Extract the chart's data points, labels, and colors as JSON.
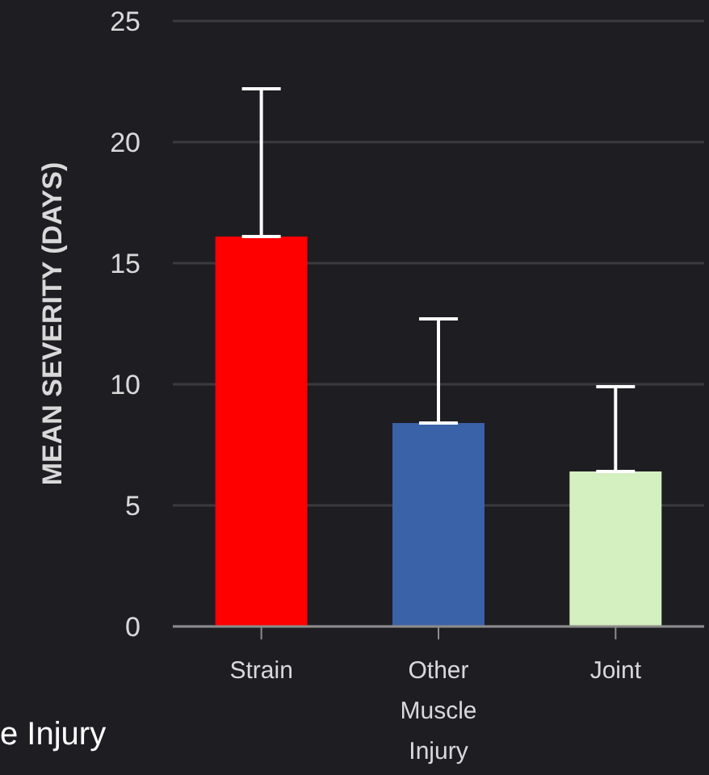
{
  "chart_data": {
    "type": "bar",
    "ylabel": "MEAN SEVERITY (DAYS)",
    "categories": [
      "Strain",
      "Other Muscle Injury",
      "Joint"
    ],
    "values": [
      16.1,
      8.4,
      6.4
    ],
    "colors": [
      "#ff0000",
      "#3a62a8",
      "#d4efc0"
    ],
    "errors": [
      [
        16.1,
        22.2
      ],
      [
        8.4,
        12.7
      ],
      [
        6.4,
        9.9
      ]
    ],
    "ylim": [
      0,
      25
    ],
    "yticks": [
      0,
      5,
      10,
      15,
      20,
      25
    ],
    "grid": "y",
    "annotations": [
      "e Injury"
    ]
  }
}
